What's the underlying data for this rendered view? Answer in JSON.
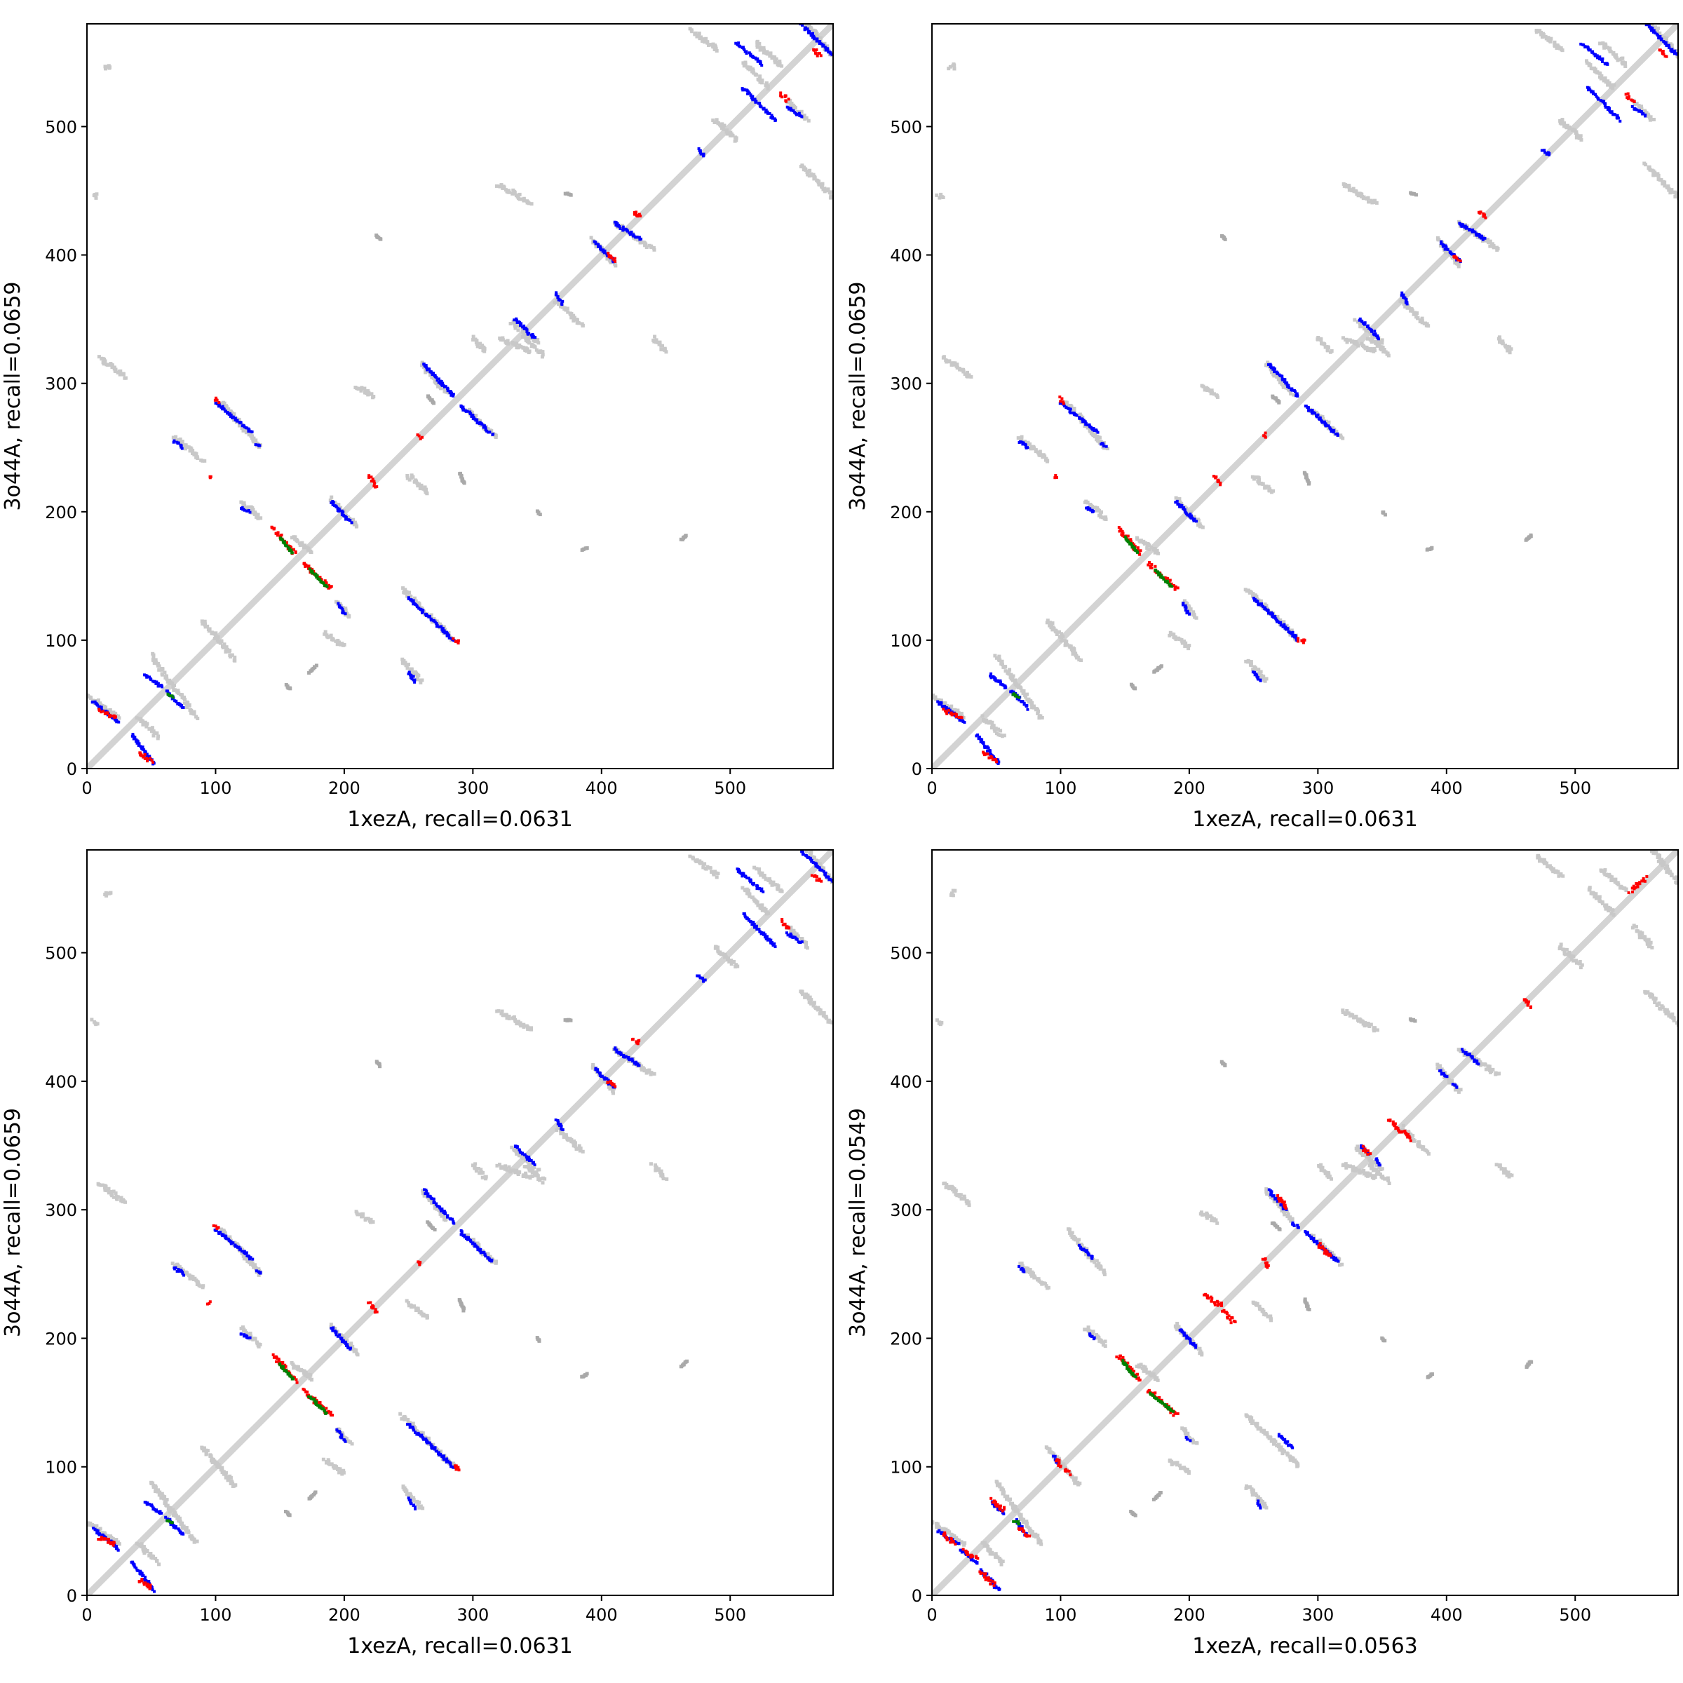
{
  "chart_data": {
    "type": "scatter",
    "colors": {
      "diagonal": "#d3d3d3",
      "gray": "#c8c8c8",
      "darkgray": "#a9a9a9",
      "blue": "#0000ff",
      "red": "#ff0000",
      "green": "#008000"
    },
    "panels": [
      {
        "xlabel": "1xezA, recall=0.0631",
        "ylabel": "3o44A, recall=0.0659",
        "variant": "full"
      },
      {
        "xlabel": "1xezA, recall=0.0631",
        "ylabel": "3o44A, recall=0.0659",
        "variant": "full"
      },
      {
        "xlabel": "1xezA, recall=0.0631",
        "ylabel": "3o44A, recall=0.0659",
        "variant": "full"
      },
      {
        "xlabel": "1xezA, recall=0.0563",
        "ylabel": "3o44A, recall=0.0549",
        "variant": "alt"
      }
    ],
    "xlim": [
      0,
      580
    ],
    "ylim": [
      0,
      580
    ],
    "xticks": [
      "0",
      "100",
      "200",
      "300",
      "400",
      "500"
    ],
    "yticks": [
      "0",
      "100",
      "200",
      "300",
      "400",
      "500"
    ],
    "gray_segments": [
      [
        0,
        57,
        25,
        40
      ],
      [
        50,
        88,
        85,
        40
      ],
      [
        90,
        115,
        115,
        85
      ],
      [
        120,
        208,
        135,
        195
      ],
      [
        190,
        210,
        210,
        188
      ],
      [
        195,
        130,
        205,
        118
      ],
      [
        245,
        140,
        285,
        100
      ],
      [
        245,
        85,
        260,
        68
      ],
      [
        105,
        285,
        135,
        250
      ],
      [
        68,
        258,
        90,
        240
      ],
      [
        260,
        315,
        280,
        292
      ],
      [
        295,
        280,
        318,
        258
      ],
      [
        210,
        298,
        222,
        290
      ],
      [
        320,
        335,
        345,
        325
      ],
      [
        320,
        455,
        345,
        440
      ],
      [
        330,
        348,
        350,
        332
      ],
      [
        393,
        412,
        410,
        392
      ],
      [
        410,
        425,
        440,
        405
      ],
      [
        440,
        335,
        450,
        325
      ],
      [
        488,
        505,
        505,
        490
      ],
      [
        510,
        550,
        530,
        530
      ],
      [
        545,
        520,
        560,
        505
      ],
      [
        520,
        565,
        540,
        548
      ],
      [
        560,
        580,
        580,
        555
      ],
      [
        470,
        575,
        490,
        560
      ],
      [
        555,
        470,
        580,
        445
      ],
      [
        250,
        228,
        265,
        215
      ],
      [
        300,
        335,
        310,
        325
      ],
      [
        160,
        180,
        175,
        168
      ],
      [
        185,
        105,
        200,
        95
      ],
      [
        40,
        40,
        55,
        25
      ],
      [
        10,
        320,
        30,
        305
      ],
      [
        5,
        447,
        8,
        445
      ],
      [
        14,
        545,
        18,
        548
      ],
      [
        365,
        364,
        385,
        345
      ],
      [
        340,
        335,
        355,
        322
      ]
    ],
    "darkgray_segments": [
      [
        155,
        65,
        158,
        62
      ],
      [
        173,
        75,
        178,
        80
      ],
      [
        462,
        178,
        466,
        182
      ],
      [
        385,
        170,
        389,
        172
      ],
      [
        350,
        200,
        352,
        198
      ],
      [
        265,
        290,
        270,
        285
      ],
      [
        290,
        230,
        293,
        222
      ],
      [
        225,
        415,
        228,
        412
      ],
      [
        372,
        448,
        376,
        447
      ]
    ],
    "full": {
      "blue": [
        [
          5,
          52,
          25,
          36
        ],
        [
          35,
          26,
          52,
          4
        ],
        [
          45,
          73,
          58,
          63
        ],
        [
          62,
          60,
          75,
          47
        ],
        [
          100,
          285,
          128,
          262
        ],
        [
          132,
          253,
          135,
          251
        ],
        [
          68,
          255,
          75,
          250
        ],
        [
          120,
          203,
          126,
          200
        ],
        [
          190,
          208,
          205,
          192
        ],
        [
          195,
          128,
          200,
          120
        ],
        [
          250,
          133,
          285,
          100
        ],
        [
          250,
          75,
          255,
          68
        ],
        [
          262,
          315,
          285,
          290
        ],
        [
          290,
          283,
          315,
          260
        ],
        [
          333,
          350,
          348,
          335
        ],
        [
          395,
          410,
          410,
          395
        ],
        [
          410,
          425,
          430,
          412
        ],
        [
          510,
          530,
          535,
          505
        ],
        [
          505,
          565,
          525,
          548
        ],
        [
          555,
          580,
          580,
          555
        ],
        [
          545,
          515,
          555,
          508
        ],
        [
          475,
          482,
          480,
          478
        ],
        [
          365,
          370,
          370,
          362
        ]
      ],
      "red": [
        [
          145,
          187,
          162,
          167
        ],
        [
          168,
          160,
          190,
          140
        ],
        [
          10,
          45,
          22,
          40
        ],
        [
          40,
          12,
          50,
          6
        ],
        [
          100,
          288,
          102,
          285
        ],
        [
          285,
          100,
          290,
          99
        ],
        [
          220,
          228,
          225,
          220
        ],
        [
          425,
          433,
          430,
          430
        ],
        [
          405,
          400,
          410,
          396
        ],
        [
          565,
          560,
          570,
          555
        ],
        [
          540,
          525,
          545,
          520
        ],
        [
          95,
          228,
          96,
          227
        ],
        [
          258,
          260,
          260,
          258
        ]
      ],
      "green": [
        [
          150,
          180,
          160,
          168
        ],
        [
          173,
          155,
          186,
          142
        ],
        [
          63,
          58,
          67,
          56
        ]
      ]
    },
    "alt": {
      "blue": [
        [
          5,
          50,
          20,
          40
        ],
        [
          22,
          36,
          35,
          25
        ],
        [
          38,
          20,
          52,
          4
        ],
        [
          47,
          72,
          56,
          64
        ],
        [
          66,
          58,
          73,
          47
        ],
        [
          95,
          108,
          98,
          103
        ],
        [
          115,
          272,
          125,
          262
        ],
        [
          68,
          255,
          72,
          252
        ],
        [
          122,
          203,
          126,
          200
        ],
        [
          193,
          207,
          205,
          193
        ],
        [
          198,
          122,
          200,
          120
        ],
        [
          262,
          315,
          275,
          300
        ],
        [
          290,
          283,
          315,
          260
        ],
        [
          333,
          350,
          340,
          343
        ],
        [
          345,
          340,
          348,
          335
        ],
        [
          395,
          408,
          400,
          404
        ],
        [
          405,
          398,
          408,
          395
        ],
        [
          413,
          424,
          425,
          414
        ],
        [
          270,
          125,
          280,
          115
        ],
        [
          253,
          73,
          256,
          68
        ],
        [
          280,
          290,
          285,
          286
        ]
      ],
      "red": [
        [
          145,
          187,
          162,
          167
        ],
        [
          168,
          160,
          190,
          140
        ],
        [
          8,
          48,
          18,
          40
        ],
        [
          25,
          35,
          35,
          28
        ],
        [
          38,
          18,
          48,
          8
        ],
        [
          47,
          74,
          56,
          66
        ],
        [
          68,
          52,
          75,
          45
        ],
        [
          97,
          106,
          99,
          100
        ],
        [
          103,
          98,
          107,
          95
        ],
        [
          212,
          234,
          225,
          225
        ],
        [
          226,
          222,
          235,
          212
        ],
        [
          258,
          262,
          262,
          255
        ],
        [
          270,
          310,
          275,
          300
        ],
        [
          300,
          273,
          310,
          263
        ],
        [
          460,
          465,
          465,
          458
        ],
        [
          543,
          548,
          555,
          558
        ],
        [
          335,
          348,
          340,
          344
        ],
        [
          355,
          370,
          372,
          355
        ]
      ],
      "green": [
        [
          148,
          182,
          158,
          170
        ],
        [
          170,
          157,
          187,
          143
        ],
        [
          64,
          58,
          68,
          56
        ]
      ]
    }
  }
}
